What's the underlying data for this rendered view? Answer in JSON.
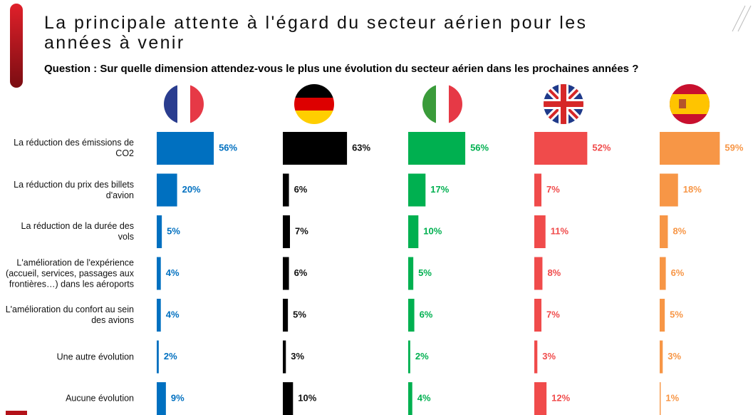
{
  "chart_data": {
    "type": "bar",
    "title": "La principale attente à l'égard du secteur aérien pour les années à venir",
    "subtitle": "Question : Sur quelle dimension attendez-vous le plus une évolution du secteur aérien dans les prochaines années ?",
    "categories": [
      "La réduction des émissions de CO2",
      "La réduction du prix des billets d'avion",
      "La réduction de la durée des vols",
      "L'amélioration de l'expérience (accueil, services, passages aux frontières…) dans les aéroports",
      "L'amélioration du confort au sein des avions",
      "Une autre évolution",
      "Aucune évolution"
    ],
    "series": [
      {
        "color": "#0070c0",
        "values": [
          56,
          20,
          5,
          4,
          4,
          2,
          9
        ],
        "value_labels": [
          "56%",
          "20%",
          "5%",
          "4%",
          "4%",
          "2%",
          "9%"
        ]
      },
      {
        "color": "#000000",
        "values": [
          63,
          6,
          7,
          6,
          5,
          3,
          10
        ],
        "value_labels": [
          "63%",
          "6%",
          "7%",
          "6%",
          "5%",
          "3%",
          "10%"
        ]
      },
      {
        "color": "#00b050",
        "values": [
          56,
          17,
          10,
          5,
          6,
          2,
          4
        ],
        "value_labels": [
          "56%",
          "17%",
          "10%",
          "5%",
          "6%",
          "2%",
          "4%"
        ]
      },
      {
        "color": "#f04b4b",
        "values": [
          52,
          7,
          11,
          8,
          7,
          3,
          12
        ],
        "value_labels": [
          "52%",
          "7%",
          "11%",
          "8%",
          "7%",
          "3%",
          "12%"
        ]
      },
      {
        "color": "#f79646",
        "values": [
          59,
          18,
          8,
          6,
          5,
          3,
          1
        ],
        "value_labels": [
          "59%",
          "18%",
          "8%",
          "6%",
          "5%",
          "3%",
          "1%"
        ]
      }
    ]
  }
}
